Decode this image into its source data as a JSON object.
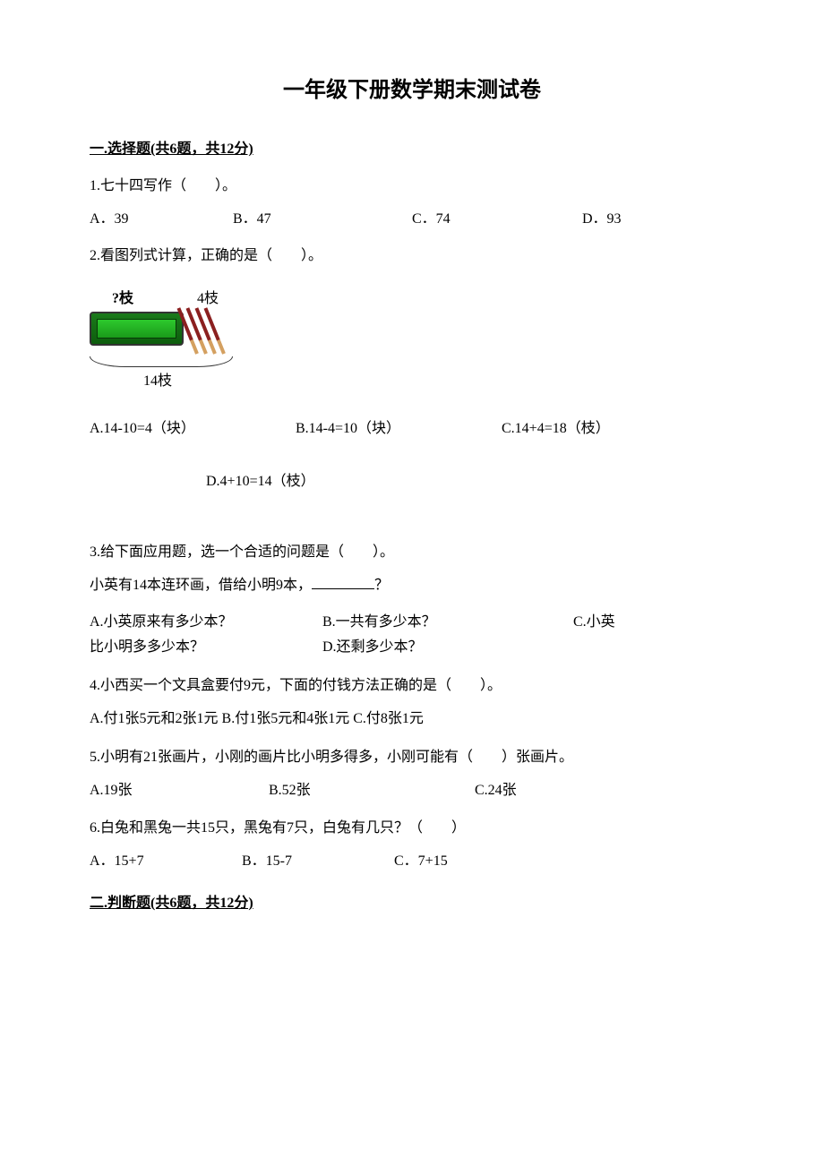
{
  "title": "一年级下册数学期末测试卷",
  "section1": {
    "header": "一.选择题(共6题，共12分)"
  },
  "q1": {
    "text": "1.七十四写作（　　）。",
    "a": "A．39",
    "b": "B．47",
    "c": "C．74",
    "d": "D．93"
  },
  "q2": {
    "text": "2.看图列式计算，正确的是（　　）。",
    "label_q": "?枝",
    "label_4": "4枝",
    "label_14": "14枝",
    "a": "A.14-10=4（块）",
    "b": "B.14-4=10（块）",
    "c": "C.14+4=18（枝）",
    "d": "D.4+10=14（枝）"
  },
  "q3": {
    "text": "3.给下面应用题，选一个合适的问题是（　　）。",
    "sub_pre": "小英有14本连环画，借给小明9本，",
    "sub_post": "？",
    "a": "A.小英原来有多少本？",
    "b": "B.一共有多少本？",
    "c_pre": "C.小英",
    "c_post": "比小明多多少本？",
    "d": "D.还剩多少本？"
  },
  "q4": {
    "text": "4.小西买一个文具盒要付9元，下面的付钱方法正确的是（　　）。",
    "options": "A.付1张5元和2张1元 B.付1张5元和4张1元 C.付8张1元"
  },
  "q5": {
    "text": "5.小明有21张画片，小刚的画片比小明多得多，小刚可能有（　　）张画片。",
    "a": "A.19张",
    "b": "B.52张",
    "c": "C.24张"
  },
  "q6": {
    "text": "6.白兔和黑兔一共15只，黑兔有7只，白兔有几只？（　　）",
    "a": "A．15+7",
    "b": "B．15-7",
    "c": "C．7+15"
  },
  "section2": {
    "header": "二.判断题(共6题，共12分)"
  }
}
